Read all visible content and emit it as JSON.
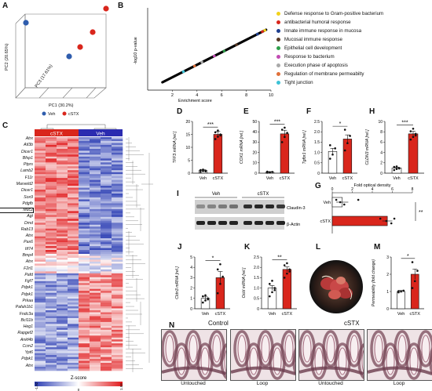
{
  "panels": {
    "A": {
      "label": "A",
      "pc1": "PC1 (30.2%)",
      "pc2": "PC2 (20.65%)",
      "pc3": "PC3 (17.61%)",
      "legend": [
        {
          "name": "Veh",
          "color": "#2f5dad"
        },
        {
          "name": "cSTX",
          "color": "#d9261c"
        }
      ]
    },
    "B": {
      "label": "B",
      "xlabel": "Enrichment score",
      "ylabel": "-log10 p-value",
      "xticks": [
        "2",
        "4",
        "6",
        "8",
        "10"
      ],
      "terms": [
        {
          "name": "Defense response to Gram-positive bacterium",
          "color": "#f2d21b"
        },
        {
          "name": "antibacterial humoral response",
          "color": "#d9261c"
        },
        {
          "name": "Innate immune response in mucosa",
          "color": "#1f3f8f"
        },
        {
          "name": "Mucosal immune response",
          "color": "#5a3a26"
        },
        {
          "name": "Epithelial cell development",
          "color": "#2e9e4a"
        },
        {
          "name": "Response to bacterium",
          "color": "#c24bb3"
        },
        {
          "name": "Execution phase of apoptosis",
          "color": "#a9a9a9"
        },
        {
          "name": "Regulation of membrane permeabilty",
          "color": "#e0703a"
        },
        {
          "name": "Tight junction",
          "color": "#3dc2d6"
        }
      ]
    },
    "C": {
      "label": "C",
      "group_left": "cSTX",
      "group_right": "Veh",
      "genes": [
        "Atrx",
        "Atl3b",
        "Dicer1",
        "Bfsp1",
        "Ptprs",
        "Lamb2",
        "F11r",
        "Marveld2",
        "Dicer1",
        "Sox9",
        "Pdgfb",
        "Muc2",
        "Agt",
        "Dmd",
        "Rab13",
        "Atrx",
        "Pax6",
        "Itf74",
        "Bmp4",
        "Atrx",
        "F2rl1",
        "Pafd",
        "Fgf7",
        "Pdpk1",
        "Pdpk1",
        "Prkaa",
        "Pafah1b1",
        "Fndc3a",
        "Bcl11b",
        "Heg1",
        "Rapgef2",
        "Ankf4b",
        "Ccm2",
        "Ypt6",
        "Pdpk1",
        "Atrx"
      ],
      "boxed_gene": "Muc2",
      "zscore_title": "Z-score",
      "zscore_min": "-1.92",
      "zscore_mid": "0",
      "zscore_max": "1.93"
    },
    "D": {
      "label": "D",
      "ylabel": "TFF3 mRNA [rel.]",
      "yticks": [
        "0",
        "5",
        "10",
        "15",
        "20"
      ],
      "ymax": 20,
      "groups": [
        "Veh",
        "cSTX"
      ],
      "means": [
        1.0,
        15.0
      ],
      "sem": [
        0.3,
        1.1
      ],
      "points": [
        [
          0.5,
          0.8,
          1.0,
          1.2,
          1.4,
          0.7
        ],
        [
          13.2,
          14.1,
          15.0,
          15.8,
          16.5,
          14.6
        ]
      ],
      "sig": "***"
    },
    "E": {
      "label": "E",
      "ylabel": "COX1 mRNA [rel.]",
      "yticks": [
        "0",
        "10",
        "20",
        "30",
        "40",
        "50"
      ],
      "ymax": 50,
      "groups": [
        "Veh",
        "cSTX"
      ],
      "means": [
        1.0,
        38.0
      ],
      "sem": [
        0.4,
        3.5
      ],
      "points": [
        [
          0.5,
          0.8,
          1.2,
          1.5,
          0.9
        ],
        [
          30,
          35,
          39,
          42,
          44
        ]
      ],
      "sig": "***"
    },
    "F": {
      "label": "F",
      "ylabel": "Tgfbr1 mRNA [rel.]",
      "yticks": [
        "0",
        "0.5",
        "1.0",
        "1.5",
        "2.0",
        "2.5"
      ],
      "ymax": 2.5,
      "groups": [
        "Veh",
        "cSTX"
      ],
      "means": [
        1.05,
        1.65
      ],
      "sem": [
        0.15,
        0.2
      ],
      "points": [
        [
          0.7,
          0.9,
          1.2,
          1.35
        ],
        [
          1.1,
          1.45,
          1.8,
          2.1
        ]
      ],
      "sig": "*"
    },
    "H": {
      "label": "H",
      "ylabel": "CLDN3 mRNA [rel.]",
      "yticks": [
        "0",
        "2",
        "4",
        "6",
        "8",
        "10"
      ],
      "ymax": 10,
      "groups": [
        "Veh",
        "cSTX"
      ],
      "means": [
        1.0,
        7.6
      ],
      "sem": [
        0.15,
        0.5
      ],
      "points": [
        [
          0.6,
          0.8,
          1.0,
          1.2,
          1.3,
          0.9
        ],
        [
          6.5,
          7.0,
          7.6,
          8.1,
          8.6,
          7.3
        ]
      ],
      "sig": "***"
    },
    "I": {
      "label": "I",
      "veh": "Veh",
      "cstx": "cSTX",
      "band1": "Claudin-3",
      "band2": "β-Actin"
    },
    "G": {
      "label": "G",
      "title": "Fold optical density",
      "xticks": [
        "0",
        "2",
        "4",
        "6",
        "8"
      ],
      "xmax": 8,
      "groups": [
        "Veh",
        "cSTX"
      ],
      "means": [
        1.0,
        5.5
      ],
      "sem": [
        0.6,
        0.5
      ],
      "points": [
        [
          0.4,
          0.8,
          1.2,
          2.6
        ],
        [
          4.8,
          5.4,
          5.9,
          6.2
        ]
      ],
      "sig": "**"
    },
    "J": {
      "label": "J",
      "ylabel": "Cldn3 mRNA [rel.]",
      "yticks": [
        "0",
        "1",
        "2",
        "3",
        "4",
        "5"
      ],
      "ymax": 5,
      "groups": [
        "Veh",
        "cSTX"
      ],
      "means": [
        1.0,
        3.0
      ],
      "sem": [
        0.2,
        0.6
      ],
      "points": [
        [
          0.6,
          0.8,
          1.0,
          1.2,
          1.3,
          0.9
        ],
        [
          1.5,
          2.4,
          3.1,
          3.8,
          4.3
        ]
      ],
      "sig": "*"
    },
    "K": {
      "label": "K",
      "ylabel": "Ocld mRNA [rel.]",
      "yticks": [
        "0",
        "0.5",
        "1.0",
        "1.5",
        "2.0",
        "2.5"
      ],
      "ymax": 2.5,
      "groups": [
        "Veh",
        "cSTX"
      ],
      "means": [
        1.0,
        1.9
      ],
      "sem": [
        0.12,
        0.12
      ],
      "points": [
        [
          0.6,
          0.8,
          1.0,
          1.2,
          1.35,
          0.9
        ],
        [
          1.5,
          1.7,
          1.9,
          2.1,
          2.2,
          1.8
        ]
      ],
      "sig": "**"
    },
    "L": {
      "label": "L"
    },
    "M": {
      "label": "M",
      "ylabel": "Permeability (fold change)",
      "yticks": [
        "0",
        "1",
        "2",
        "3"
      ],
      "ymax": 3,
      "groups": [
        "Veh",
        "cSTX"
      ],
      "means": [
        1.0,
        2.0
      ],
      "sem": [
        0.06,
        0.3
      ],
      "points": [
        [
          0.95,
          1.0,
          1.05,
          1.02
        ],
        [
          1.2,
          1.6,
          2.2,
          2.7
        ]
      ],
      "sig": "*"
    },
    "N": {
      "label": "N",
      "control": "Control",
      "cstx": "cSTX",
      "captions": [
        "Untouched",
        "Loop",
        "Untouched",
        "Loop"
      ]
    }
  }
}
